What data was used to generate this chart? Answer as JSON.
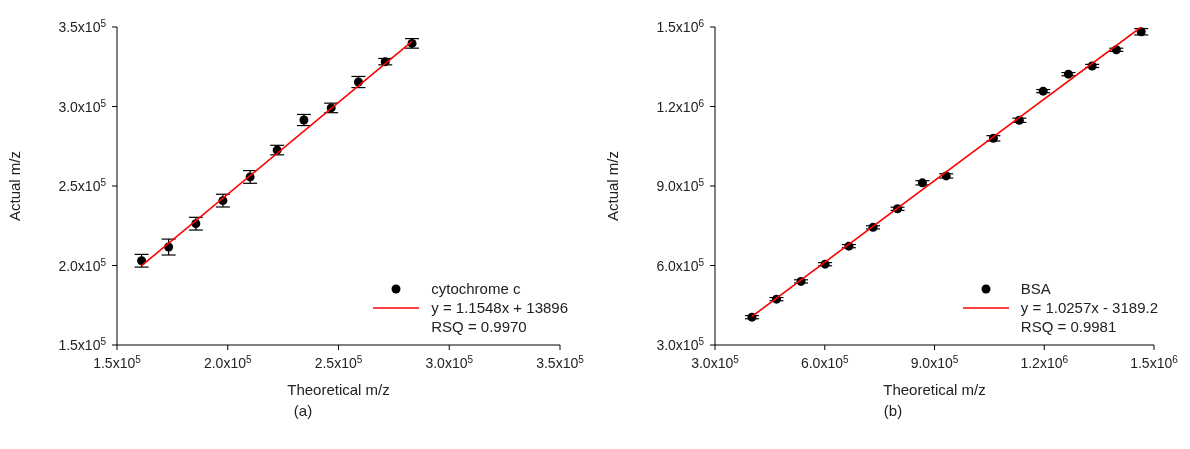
{
  "chart_data": [
    {
      "type": "scatter",
      "xlabel": "Theoretical m/z",
      "ylabel": "Actual m/z",
      "grid": false,
      "legend": "bottom right",
      "xlim": [
        150000,
        350000
      ],
      "ylim": [
        150000,
        350000
      ],
      "xticks": [
        {
          "value": 150000,
          "label": "1.5x10$^{5}$"
        },
        {
          "value": 200000,
          "label": "2.0x10$^{5}$"
        },
        {
          "value": 250000,
          "label": "2.5x10$^{5}$"
        },
        {
          "value": 300000,
          "label": "3.0x10$^{5}$"
        },
        {
          "value": 350000,
          "label": "3.5x10$^{5}$"
        }
      ],
      "yticks": [
        {
          "value": 150000,
          "label": "1.5x10$^{5}$"
        },
        {
          "value": 200000,
          "label": "2.0x10$^{5}$"
        },
        {
          "value": 250000,
          "label": "2.5x10$^{5}$"
        },
        {
          "value": 300000,
          "label": "3.0x10$^{5}$"
        },
        {
          "value": 350000,
          "label": "3.5x10$^{5}$"
        }
      ],
      "series": [
        {
          "name": "cytochrome c",
          "type": "scatter",
          "marker": "circle",
          "color": "#000000",
          "x": [
            161100,
            173300,
            185600,
            197800,
            210100,
            222300,
            234400,
            246700,
            259000,
            271100,
            283200
          ],
          "values": [
            203000,
            211600,
            226300,
            240800,
            255700,
            272600,
            291500,
            299100,
            315400,
            328200,
            339700
          ],
          "errors": [
            4000,
            5000,
            4000,
            4000,
            4000,
            3000,
            3500,
            3000,
            3500,
            2000,
            3000
          ]
        },
        {
          "name": "y = 1.1548x + 13896",
          "type": "line",
          "marker": "none",
          "color": "#ff0000",
          "x": [
            161100,
            283200
          ],
          "values": [
            199900,
            340900
          ]
        }
      ],
      "annotations": [
        "RSQ = 0.9970",
        "(a)"
      ]
    },
    {
      "type": "scatter",
      "xlabel": "Theoretical m/z",
      "ylabel": "Actual m/z",
      "grid": false,
      "legend": "bottom right",
      "xlim": [
        300000,
        1500000
      ],
      "ylim": [
        300000,
        1500000
      ],
      "xticks": [
        {
          "value": 300000,
          "label": "3.0x10$^{5}$"
        },
        {
          "value": 600000,
          "label": "6.0x10$^{5}$"
        },
        {
          "value": 900000,
          "label": "9.0x10$^{5}$"
        },
        {
          "value": 1200000,
          "label": "1.2x10$^{6}$"
        },
        {
          "value": 1500000,
          "label": "1.5x10$^{6}$"
        }
      ],
      "yticks": [
        {
          "value": 300000,
          "label": "3.0x10$^{5}$"
        },
        {
          "value": 600000,
          "label": "6.0x10$^{5}$"
        },
        {
          "value": 900000,
          "label": "9.0x10$^{5}$"
        },
        {
          "value": 1200000,
          "label": "1.2x10$^{6}$"
        },
        {
          "value": 1500000,
          "label": "1.5x10$^{6}$"
        }
      ],
      "series": [
        {
          "name": "BSA",
          "type": "scatter",
          "marker": "circle",
          "color": "#000000",
          "x": [
            401000,
            468000,
            535000,
            601000,
            666000,
            732000,
            799000,
            867000,
            932000,
            1061000,
            1132000,
            1197000,
            1266000,
            1331000,
            1397000,
            1465000
          ],
          "values": [
            405000,
            473000,
            540000,
            605000,
            673000,
            744000,
            814000,
            912000,
            938000,
            1080000,
            1148000,
            1258000,
            1322000,
            1353000,
            1414000,
            1482000
          ],
          "errors": [
            6000,
            6000,
            6000,
            6000,
            6000,
            6000,
            6000,
            8000,
            8000,
            10000,
            8000,
            6000,
            6000,
            6000,
            6000,
            12000
          ]
        },
        {
          "name": "y = 1.0257x - 3189.2",
          "type": "line",
          "marker": "none",
          "color": "#ff0000",
          "x": [
            401000,
            1465000
          ],
          "values": [
            408000,
            1500000
          ]
        }
      ],
      "annotations": [
        "RSQ = 0.9981",
        "(b)"
      ]
    }
  ]
}
